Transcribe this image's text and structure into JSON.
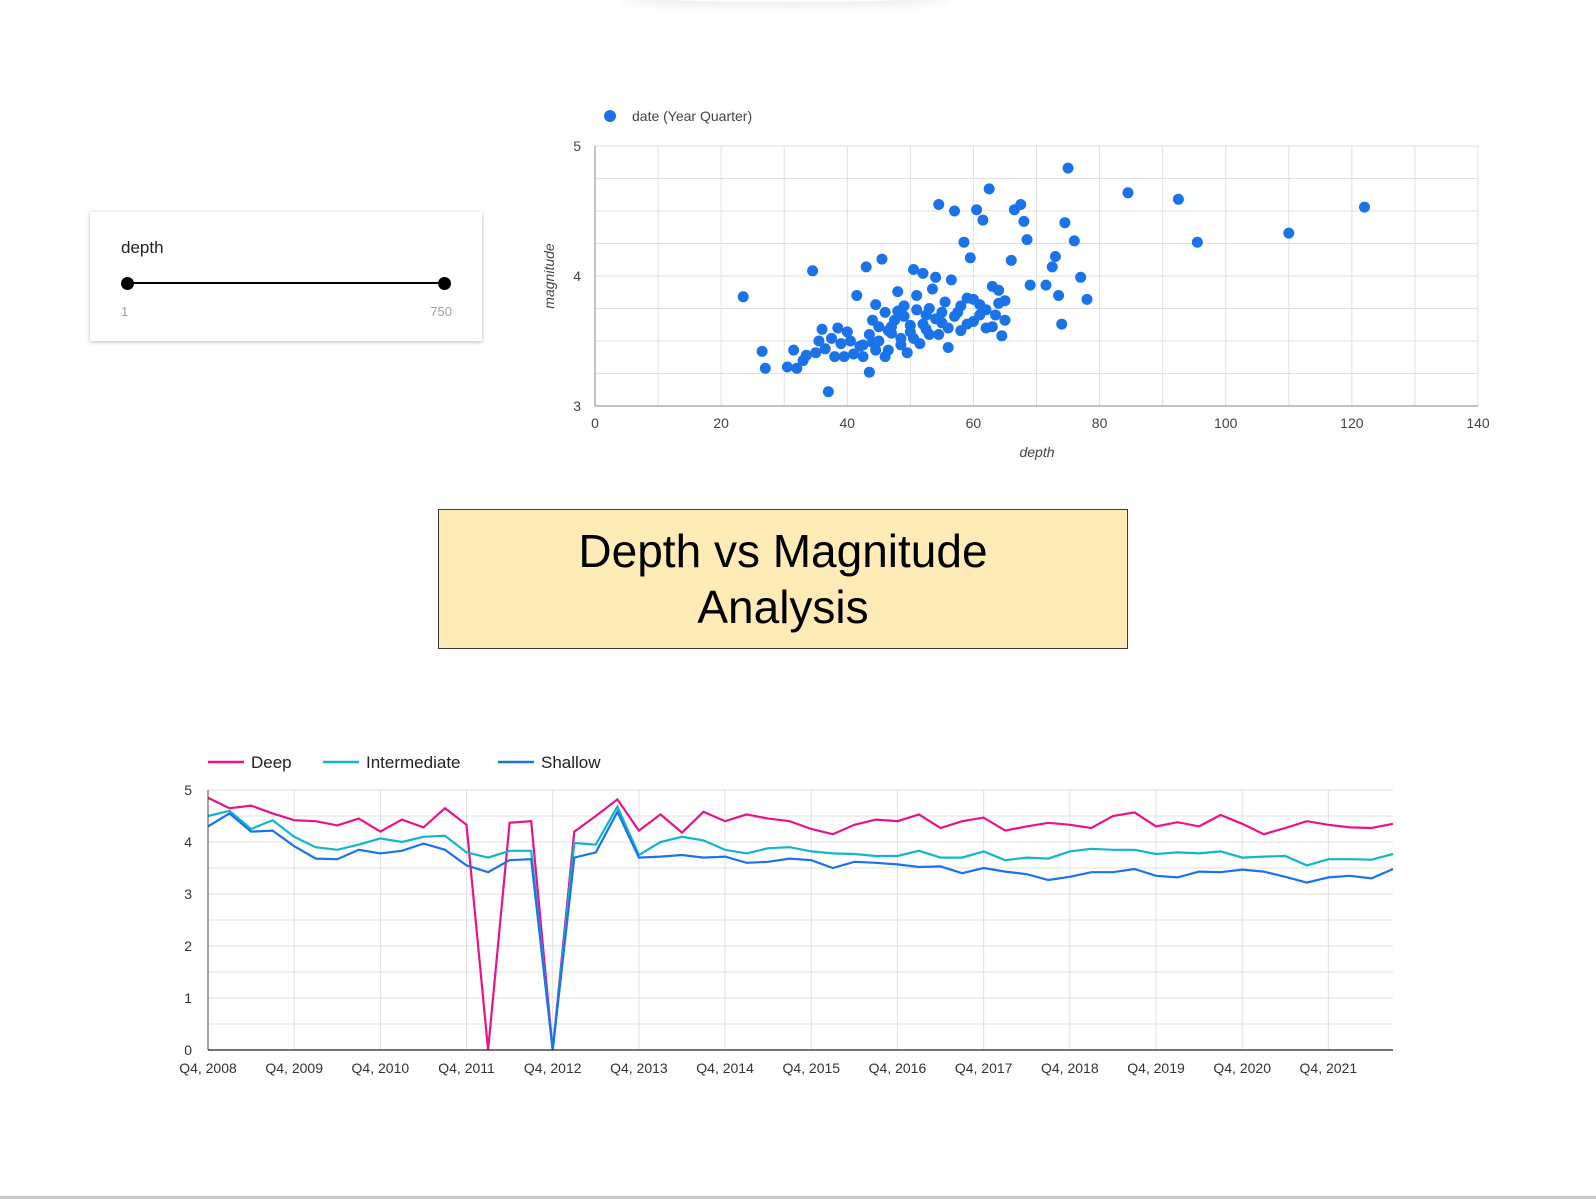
{
  "slider": {
    "label": "depth",
    "min_label": "1",
    "max_label": "750",
    "min_value": 1,
    "max_value": 750
  },
  "dashboard_title": "Depth vs Magnitude Analysis",
  "chart_data": [
    {
      "type": "scatter",
      "legend": [
        "date (Year Quarter)"
      ],
      "legend_position": "top-left",
      "xlabel": "depth",
      "ylabel": "magnitude",
      "xlim": [
        0,
        140
      ],
      "ylim": [
        3,
        5
      ],
      "x_ticks": [
        "0",
        "20",
        "40",
        "60",
        "80",
        "100",
        "120",
        "140"
      ],
      "y_ticks": [
        "3",
        "4",
        "5"
      ],
      "grid": true,
      "color": "#1a73e8",
      "points": [
        [
          23.5,
          3.84
        ],
        [
          26.5,
          3.42
        ],
        [
          27,
          3.29
        ],
        [
          30.5,
          3.3
        ],
        [
          31.5,
          3.43
        ],
        [
          32,
          3.29
        ],
        [
          33,
          3.35
        ],
        [
          33.5,
          3.39
        ],
        [
          34.5,
          4.04
        ],
        [
          35,
          3.41
        ],
        [
          35.5,
          3.5
        ],
        [
          36,
          3.59
        ],
        [
          36.5,
          3.44
        ],
        [
          37,
          3.11
        ],
        [
          37.5,
          3.52
        ],
        [
          38,
          3.38
        ],
        [
          38.5,
          3.6
        ],
        [
          39,
          3.48
        ],
        [
          39.5,
          3.38
        ],
        [
          40,
          3.57
        ],
        [
          40.5,
          3.5
        ],
        [
          41,
          3.4
        ],
        [
          41.5,
          3.85
        ],
        [
          42,
          3.46
        ],
        [
          42.5,
          3.38
        ],
        [
          43,
          4.07
        ],
        [
          43.5,
          3.26
        ],
        [
          44,
          3.49
        ],
        [
          44.5,
          3.78
        ],
        [
          45,
          3.61
        ],
        [
          45.5,
          4.13
        ],
        [
          46,
          3.72
        ],
        [
          46.5,
          3.43
        ],
        [
          47,
          3.56
        ],
        [
          47.5,
          3.66
        ],
        [
          48,
          3.88
        ],
        [
          48.5,
          3.52
        ],
        [
          49,
          3.77
        ],
        [
          49.5,
          3.41
        ],
        [
          50,
          3.62
        ],
        [
          50.5,
          4.05
        ],
        [
          51,
          3.85
        ],
        [
          51.5,
          3.48
        ],
        [
          52,
          4.02
        ],
        [
          52.5,
          3.7
        ],
        [
          53,
          3.55
        ],
        [
          53.5,
          3.9
        ],
        [
          54,
          3.99
        ],
        [
          54.5,
          4.55
        ],
        [
          55,
          3.64
        ],
        [
          55.5,
          3.8
        ],
        [
          56,
          3.45
        ],
        [
          56.5,
          3.97
        ],
        [
          57,
          4.5
        ],
        [
          57.5,
          3.72
        ],
        [
          58,
          3.58
        ],
        [
          58.5,
          4.26
        ],
        [
          59,
          3.83
        ],
        [
          59.5,
          4.14
        ],
        [
          60,
          3.65
        ],
        [
          60.5,
          4.51
        ],
        [
          61,
          3.78
        ],
        [
          61.5,
          4.43
        ],
        [
          62,
          3.6
        ],
        [
          62.5,
          4.67
        ],
        [
          63,
          3.92
        ],
        [
          63.5,
          3.7
        ],
        [
          64,
          3.89
        ],
        [
          64.5,
          3.54
        ],
        [
          65,
          3.81
        ],
        [
          66,
          4.12
        ],
        [
          66.5,
          4.51
        ],
        [
          67.5,
          4.55
        ],
        [
          68,
          4.42
        ],
        [
          68.5,
          4.28
        ],
        [
          69,
          3.93
        ],
        [
          71.5,
          3.93
        ],
        [
          72.5,
          4.07
        ],
        [
          73,
          4.15
        ],
        [
          73.5,
          3.85
        ],
        [
          74,
          3.63
        ],
        [
          74.5,
          4.41
        ],
        [
          75,
          4.83
        ],
        [
          76,
          4.27
        ],
        [
          77,
          3.99
        ],
        [
          78,
          3.82
        ],
        [
          84.5,
          4.64
        ],
        [
          92.5,
          4.59
        ],
        [
          95.5,
          4.26
        ],
        [
          110,
          4.33
        ],
        [
          122,
          4.53
        ],
        [
          42.5,
          3.47
        ],
        [
          43.5,
          3.55
        ],
        [
          44,
          3.66
        ],
        [
          45,
          3.5
        ],
        [
          46,
          3.38
        ],
        [
          47,
          3.61
        ],
        [
          48,
          3.73
        ],
        [
          49,
          3.69
        ],
        [
          50,
          3.57
        ],
        [
          51,
          3.74
        ],
        [
          52,
          3.63
        ],
        [
          53,
          3.75
        ],
        [
          54,
          3.67
        ],
        [
          55,
          3.72
        ],
        [
          56,
          3.6
        ],
        [
          57,
          3.69
        ],
        [
          58,
          3.77
        ],
        [
          59,
          3.63
        ],
        [
          60,
          3.82
        ],
        [
          61,
          3.7
        ],
        [
          62,
          3.74
        ],
        [
          63,
          3.61
        ],
        [
          64,
          3.79
        ],
        [
          65,
          3.66
        ],
        [
          44.5,
          3.43
        ],
        [
          46.5,
          3.58
        ],
        [
          48.5,
          3.47
        ],
        [
          50.5,
          3.52
        ],
        [
          52.5,
          3.59
        ],
        [
          54.5,
          3.55
        ]
      ]
    },
    {
      "type": "line",
      "legend_position": "top-left",
      "ylim": [
        0,
        5
      ],
      "y_ticks": [
        "0",
        "1",
        "2",
        "3",
        "4",
        "5"
      ],
      "grid": true,
      "categories": [
        "Q4, 2008",
        "Q1, 2009",
        "Q2, 2009",
        "Q3, 2009",
        "Q4, 2009",
        "Q1, 2010",
        "Q2, 2010",
        "Q3, 2010",
        "Q4, 2010",
        "Q1, 2011",
        "Q2, 2011",
        "Q3, 2011",
        "Q4, 2011",
        "Q1, 2012",
        "Q2, 2012",
        "Q3, 2012",
        "Q4, 2012",
        "Q1, 2013",
        "Q2, 2013",
        "Q3, 2013",
        "Q4, 2013",
        "Q1, 2014",
        "Q2, 2014",
        "Q3, 2014",
        "Q4, 2014",
        "Q1, 2015",
        "Q2, 2015",
        "Q3, 2015",
        "Q4, 2015",
        "Q1, 2016",
        "Q2, 2016",
        "Q3, 2016",
        "Q4, 2016",
        "Q1, 2017",
        "Q2, 2017",
        "Q3, 2017",
        "Q4, 2017",
        "Q1, 2018",
        "Q2, 2018",
        "Q3, 2018",
        "Q4, 2018",
        "Q1, 2019",
        "Q2, 2019",
        "Q3, 2019",
        "Q4, 2019",
        "Q1, 2020",
        "Q2, 2020",
        "Q3, 2020",
        "Q4, 2020",
        "Q1, 2021",
        "Q2, 2021",
        "Q3, 2021",
        "Q4, 2021",
        "Q1, 2022",
        "Q2, 2022",
        "Q3, 2022"
      ],
      "x_ticks": [
        "Q4, 2008",
        "Q4, 2009",
        "Q4, 2010",
        "Q4, 2011",
        "Q4, 2012",
        "Q4, 2013",
        "Q4, 2014",
        "Q4, 2015",
        "Q4, 2016",
        "Q4, 2017",
        "Q4, 2018",
        "Q4, 2019",
        "Q4, 2020",
        "Q4, 2021"
      ],
      "series": [
        {
          "name": "Deep",
          "color": "#e8128a",
          "values": [
            4.85,
            4.65,
            4.7,
            4.55,
            4.42,
            4.4,
            4.32,
            4.45,
            4.2,
            4.43,
            4.28,
            4.65,
            4.33,
            0,
            4.37,
            4.4,
            0,
            4.2,
            4.5,
            4.82,
            4.22,
            4.53,
            4.18,
            4.58,
            4.4,
            4.53,
            4.45,
            4.4,
            4.25,
            4.15,
            4.33,
            4.43,
            4.4,
            4.53,
            4.27,
            4.4,
            4.47,
            4.22,
            4.3,
            4.37,
            4.33,
            4.27,
            4.5,
            4.57,
            4.3,
            4.38,
            4.3,
            4.52,
            4.35,
            4.15,
            4.27,
            4.4,
            4.33,
            4.28,
            4.27,
            4.35
          ]
        },
        {
          "name": "Intermediate",
          "color": "#12b5cb",
          "values": [
            4.5,
            4.6,
            4.25,
            4.42,
            4.1,
            3.9,
            3.85,
            3.95,
            4.07,
            4.0,
            4.1,
            4.12,
            3.8,
            3.7,
            3.83,
            3.83,
            0,
            3.98,
            3.95,
            4.68,
            3.75,
            4.0,
            4.1,
            4.03,
            3.85,
            3.78,
            3.88,
            3.9,
            3.82,
            3.78,
            3.77,
            3.73,
            3.73,
            3.83,
            3.7,
            3.7,
            3.82,
            3.65,
            3.7,
            3.68,
            3.82,
            3.87,
            3.85,
            3.85,
            3.77,
            3.8,
            3.78,
            3.82,
            3.7,
            3.72,
            3.73,
            3.55,
            3.67,
            3.67,
            3.66,
            3.77
          ]
        },
        {
          "name": "Shallow",
          "color": "#1a73e8",
          "values": [
            4.3,
            4.55,
            4.2,
            4.22,
            3.92,
            3.68,
            3.67,
            3.85,
            3.78,
            3.83,
            3.97,
            3.85,
            3.55,
            3.42,
            3.65,
            3.67,
            0,
            3.7,
            3.8,
            4.58,
            3.7,
            3.72,
            3.75,
            3.7,
            3.72,
            3.6,
            3.62,
            3.68,
            3.65,
            3.5,
            3.62,
            3.6,
            3.57,
            3.52,
            3.53,
            3.4,
            3.5,
            3.43,
            3.38,
            3.27,
            3.33,
            3.42,
            3.42,
            3.48,
            3.35,
            3.32,
            3.43,
            3.42,
            3.47,
            3.43,
            3.33,
            3.22,
            3.32,
            3.35,
            3.3,
            3.48
          ]
        }
      ]
    }
  ]
}
